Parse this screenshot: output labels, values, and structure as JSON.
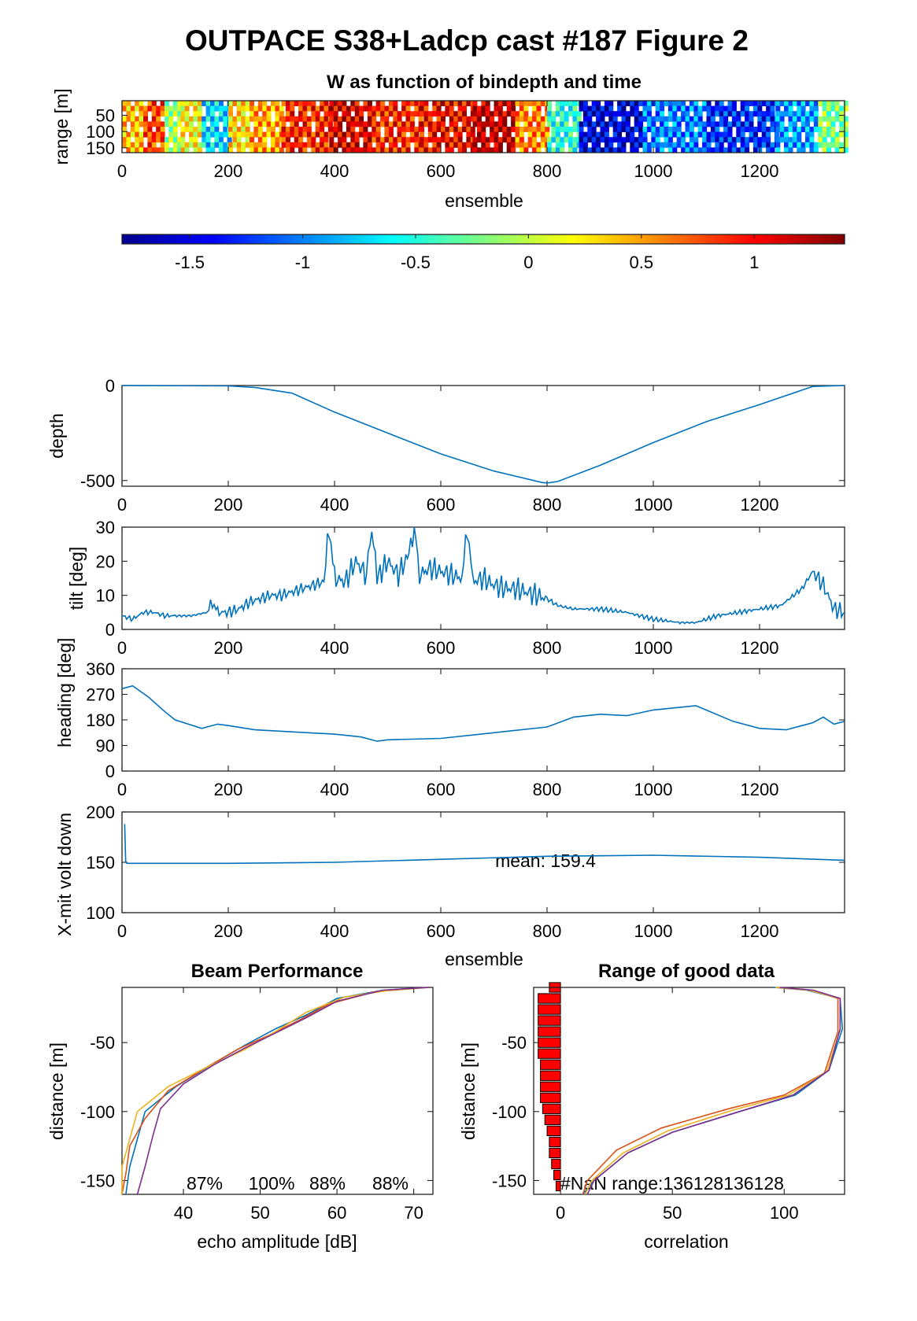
{
  "page": {
    "title": "OUTPACE S38+Ladcp cast #187 Figure 2"
  },
  "colors": {
    "blue": "#0072BD",
    "orange": "#D95319",
    "yellow": "#EDB120",
    "purple": "#7E2F8E",
    "red": "#FF0000"
  },
  "chart_data": [
    {
      "id": "w-image",
      "type": "heatmap",
      "title": "W as function of bindepth and time",
      "xlabel": "ensemble",
      "ylabel": "range [m]",
      "xlim": [
        0,
        1360
      ],
      "ylim": [
        165,
        5
      ],
      "xticks": [
        "0",
        "200",
        "400",
        "600",
        "800",
        "1000",
        "1200"
      ],
      "yticks": [
        "50",
        "100",
        "150"
      ],
      "segments": [
        {
          "x0": 0,
          "x1": 40,
          "w": 0.4
        },
        {
          "x0": 40,
          "x1": 80,
          "w": 0.8
        },
        {
          "x0": 80,
          "x1": 110,
          "w": -0.1
        },
        {
          "x0": 110,
          "x1": 150,
          "w": 0.2
        },
        {
          "x0": 150,
          "x1": 200,
          "w": -0.7
        },
        {
          "x0": 200,
          "x1": 240,
          "w": 0.3
        },
        {
          "x0": 240,
          "x1": 300,
          "w": 0.5
        },
        {
          "x0": 300,
          "x1": 390,
          "w": 0.9
        },
        {
          "x0": 390,
          "x1": 470,
          "w": 1.1
        },
        {
          "x0": 470,
          "x1": 560,
          "w": 0.9
        },
        {
          "x0": 560,
          "x1": 660,
          "w": 1.0
        },
        {
          "x0": 660,
          "x1": 740,
          "w": 1.2
        },
        {
          "x0": 740,
          "x1": 800,
          "w": 0.6
        },
        {
          "x0": 800,
          "x1": 860,
          "w": -0.5
        },
        {
          "x0": 860,
          "x1": 980,
          "w": -1.5
        },
        {
          "x0": 980,
          "x1": 1100,
          "w": -1.0
        },
        {
          "x0": 1100,
          "x1": 1230,
          "w": -1.3
        },
        {
          "x0": 1230,
          "x1": 1310,
          "w": -0.9
        },
        {
          "x0": 1310,
          "x1": 1360,
          "w": -0.2
        }
      ]
    },
    {
      "id": "colorbar",
      "type": "heatmap",
      "clim": [
        -1.8,
        1.4
      ],
      "ticks": [
        "-1.5",
        "-1",
        "-0.5",
        "0",
        "0.5",
        "1"
      ]
    },
    {
      "id": "depth",
      "type": "line",
      "xlabel": "",
      "ylabel": "depth",
      "xlim": [
        0,
        1360
      ],
      "ylim": [
        -530,
        0
      ],
      "xticks": [
        "0",
        "200",
        "400",
        "600",
        "800",
        "1000",
        "1200"
      ],
      "yticks": [
        "0",
        "-500"
      ],
      "x": [
        0,
        200,
        250,
        320,
        400,
        500,
        600,
        700,
        790,
        800,
        820,
        900,
        1000,
        1100,
        1200,
        1300,
        1360
      ],
      "y": [
        0,
        -2,
        -10,
        -40,
        -140,
        -250,
        -360,
        -450,
        -510,
        -513,
        -505,
        -420,
        -300,
        -190,
        -100,
        -5,
        0
      ]
    },
    {
      "id": "tilt",
      "type": "line",
      "xlabel": "",
      "ylabel": "tilt [deg]",
      "xlim": [
        0,
        1360
      ],
      "ylim": [
        0,
        30
      ],
      "xticks": [
        "0",
        "200",
        "400",
        "600",
        "800",
        "1000",
        "1200"
      ],
      "yticks": [
        "0",
        "10",
        "20",
        "30"
      ],
      "x": [
        0,
        20,
        40,
        60,
        80,
        100,
        130,
        160,
        170,
        180,
        200,
        220,
        240,
        260,
        280,
        300,
        320,
        340,
        360,
        380,
        390,
        400,
        420,
        440,
        460,
        470,
        480,
        500,
        520,
        540,
        550,
        560,
        580,
        600,
        620,
        640,
        650,
        660,
        680,
        700,
        720,
        740,
        760,
        780,
        800,
        820,
        850,
        900,
        950,
        1000,
        1050,
        1080,
        1120,
        1160,
        1200,
        1240,
        1280,
        1300,
        1320,
        1340,
        1360
      ],
      "y": [
        4,
        3,
        5,
        5,
        4,
        4,
        4,
        5,
        8,
        5,
        5,
        6,
        8,
        9,
        10,
        10,
        11,
        12,
        13,
        14,
        30,
        15,
        14,
        20,
        16,
        30,
        15,
        20,
        16,
        22,
        30,
        16,
        18,
        17,
        16,
        15,
        30,
        14,
        15,
        13,
        12,
        12,
        11,
        10,
        9,
        7,
        6,
        6,
        5,
        3,
        2,
        2,
        4,
        5,
        6,
        7,
        12,
        17,
        13,
        6,
        5
      ]
    },
    {
      "id": "heading",
      "type": "line",
      "xlabel": "",
      "ylabel": "heading [deg]",
      "xlim": [
        0,
        1360
      ],
      "ylim": [
        0,
        360
      ],
      "xticks": [
        "0",
        "200",
        "400",
        "600",
        "800",
        "1000",
        "1200"
      ],
      "yticks": [
        "0",
        "90",
        "180",
        "270",
        "360"
      ],
      "x": [
        0,
        20,
        50,
        80,
        100,
        150,
        180,
        200,
        250,
        300,
        350,
        400,
        450,
        480,
        500,
        600,
        700,
        800,
        850,
        900,
        950,
        1000,
        1080,
        1150,
        1200,
        1250,
        1300,
        1320,
        1340,
        1360
      ],
      "y": [
        290,
        300,
        260,
        210,
        180,
        150,
        165,
        160,
        145,
        140,
        135,
        130,
        120,
        105,
        110,
        115,
        135,
        155,
        190,
        200,
        195,
        215,
        230,
        175,
        150,
        145,
        170,
        190,
        165,
        175
      ]
    },
    {
      "id": "xmit-volt",
      "type": "line",
      "xlabel": "ensemble",
      "ylabel": "X-mit volt down",
      "xlim": [
        0,
        1360
      ],
      "ylim": [
        100,
        200
      ],
      "xticks": [
        "0",
        "200",
        "400",
        "600",
        "800",
        "1000",
        "1200"
      ],
      "yticks": [
        "100",
        "150",
        "200"
      ],
      "annotation": "mean: 159.4",
      "x": [
        5,
        7,
        10,
        20,
        200,
        400,
        600,
        800,
        1000,
        1200,
        1360
      ],
      "y": [
        188,
        150,
        149,
        149,
        149,
        150,
        153,
        156,
        157,
        155,
        152
      ]
    },
    {
      "id": "beam-performance",
      "type": "line",
      "title": "Beam Performance",
      "xlabel": "echo amplitude [dB]",
      "ylabel": "distance [m]",
      "xlim": [
        32,
        72.5
      ],
      "ylim": [
        -160,
        -10
      ],
      "xticks": [
        "40",
        "50",
        "60",
        "70"
      ],
      "yticks": [
        "-50",
        "-100",
        "-150"
      ],
      "annotations": [
        "87%",
        "100%",
        "88%",
        "88%"
      ],
      "series": [
        {
          "color": "blue",
          "x": [
            72,
            66,
            60,
            56,
            52,
            48,
            44,
            39,
            35,
            34,
            33,
            32.5
          ],
          "y": [
            -10,
            -12,
            -18,
            -30,
            -40,
            -52,
            -65,
            -82,
            -100,
            -120,
            -140,
            -160
          ]
        },
        {
          "color": "orange",
          "x": [
            72,
            65,
            59,
            55,
            51,
            47,
            43,
            38,
            35,
            33,
            32.5,
            32
          ],
          "y": [
            -10,
            -13,
            -22,
            -34,
            -45,
            -55,
            -68,
            -85,
            -105,
            -125,
            -145,
            -160
          ]
        },
        {
          "color": "yellow",
          "x": [
            72,
            67,
            61,
            56,
            52,
            48,
            43,
            38,
            34,
            33,
            32,
            32
          ],
          "y": [
            -10,
            -12,
            -17,
            -28,
            -42,
            -55,
            -68,
            -82,
            -100,
            -120,
            -140,
            -160
          ]
        },
        {
          "color": "purple",
          "x": [
            72,
            66,
            60,
            56,
            52,
            48,
            44,
            40,
            37,
            36,
            35,
            34
          ],
          "y": [
            -10,
            -12,
            -20,
            -32,
            -43,
            -54,
            -66,
            -80,
            -98,
            -118,
            -140,
            -160
          ]
        }
      ]
    },
    {
      "id": "range-good-data",
      "type": "line",
      "title": "Range of good data",
      "xlabel": "correlation",
      "ylabel": "distance [m]",
      "xlim": [
        -12,
        127
      ],
      "ylim": [
        -160,
        -10
      ],
      "xticks": [
        "0",
        "50",
        "100"
      ],
      "yticks": [
        "-50",
        "-100",
        "-150"
      ],
      "annotation": "#NaN range:136128136128",
      "bars": [
        {
          "y": -10,
          "v": 5
        },
        {
          "y": -18,
          "v": 10
        },
        {
          "y": -26,
          "v": 10
        },
        {
          "y": -34,
          "v": 10
        },
        {
          "y": -42,
          "v": 10
        },
        {
          "y": -50,
          "v": 10
        },
        {
          "y": -58,
          "v": 10
        },
        {
          "y": -66,
          "v": 9
        },
        {
          "y": -74,
          "v": 9
        },
        {
          "y": -82,
          "v": 9
        },
        {
          "y": -90,
          "v": 9
        },
        {
          "y": -98,
          "v": 8
        },
        {
          "y": -106,
          "v": 7
        },
        {
          "y": -114,
          "v": 6
        },
        {
          "y": -122,
          "v": 5
        },
        {
          "y": -130,
          "v": 5
        },
        {
          "y": -138,
          "v": 4
        },
        {
          "y": -146,
          "v": 3
        },
        {
          "y": -154,
          "v": 2
        }
      ],
      "series": [
        {
          "color": "blue",
          "x": [
            95,
            110,
            125,
            126,
            120,
            105,
            80,
            50,
            30,
            15,
            10
          ],
          "y": [
            -10,
            -12,
            -18,
            -40,
            -70,
            -88,
            -100,
            -115,
            -130,
            -150,
            -160
          ]
        },
        {
          "color": "orange",
          "x": [
            97,
            112,
            124,
            124,
            118,
            100,
            75,
            45,
            25,
            12,
            10
          ],
          "y": [
            -10,
            -12,
            -18,
            -42,
            -72,
            -88,
            -98,
            -112,
            -128,
            -150,
            -160
          ]
        },
        {
          "color": "yellow",
          "x": [
            96,
            111,
            125,
            125,
            119,
            102,
            77,
            48,
            28,
            14,
            11
          ],
          "y": [
            -10,
            -12,
            -18,
            -41,
            -71,
            -88,
            -99,
            -114,
            -130,
            -150,
            -160
          ]
        },
        {
          "color": "purple",
          "x": [
            98,
            113,
            125,
            125,
            120,
            104,
            80,
            50,
            30,
            15,
            12
          ],
          "y": [
            -10,
            -12,
            -18,
            -40,
            -70,
            -88,
            -100,
            -115,
            -130,
            -150,
            -160
          ]
        }
      ]
    }
  ]
}
